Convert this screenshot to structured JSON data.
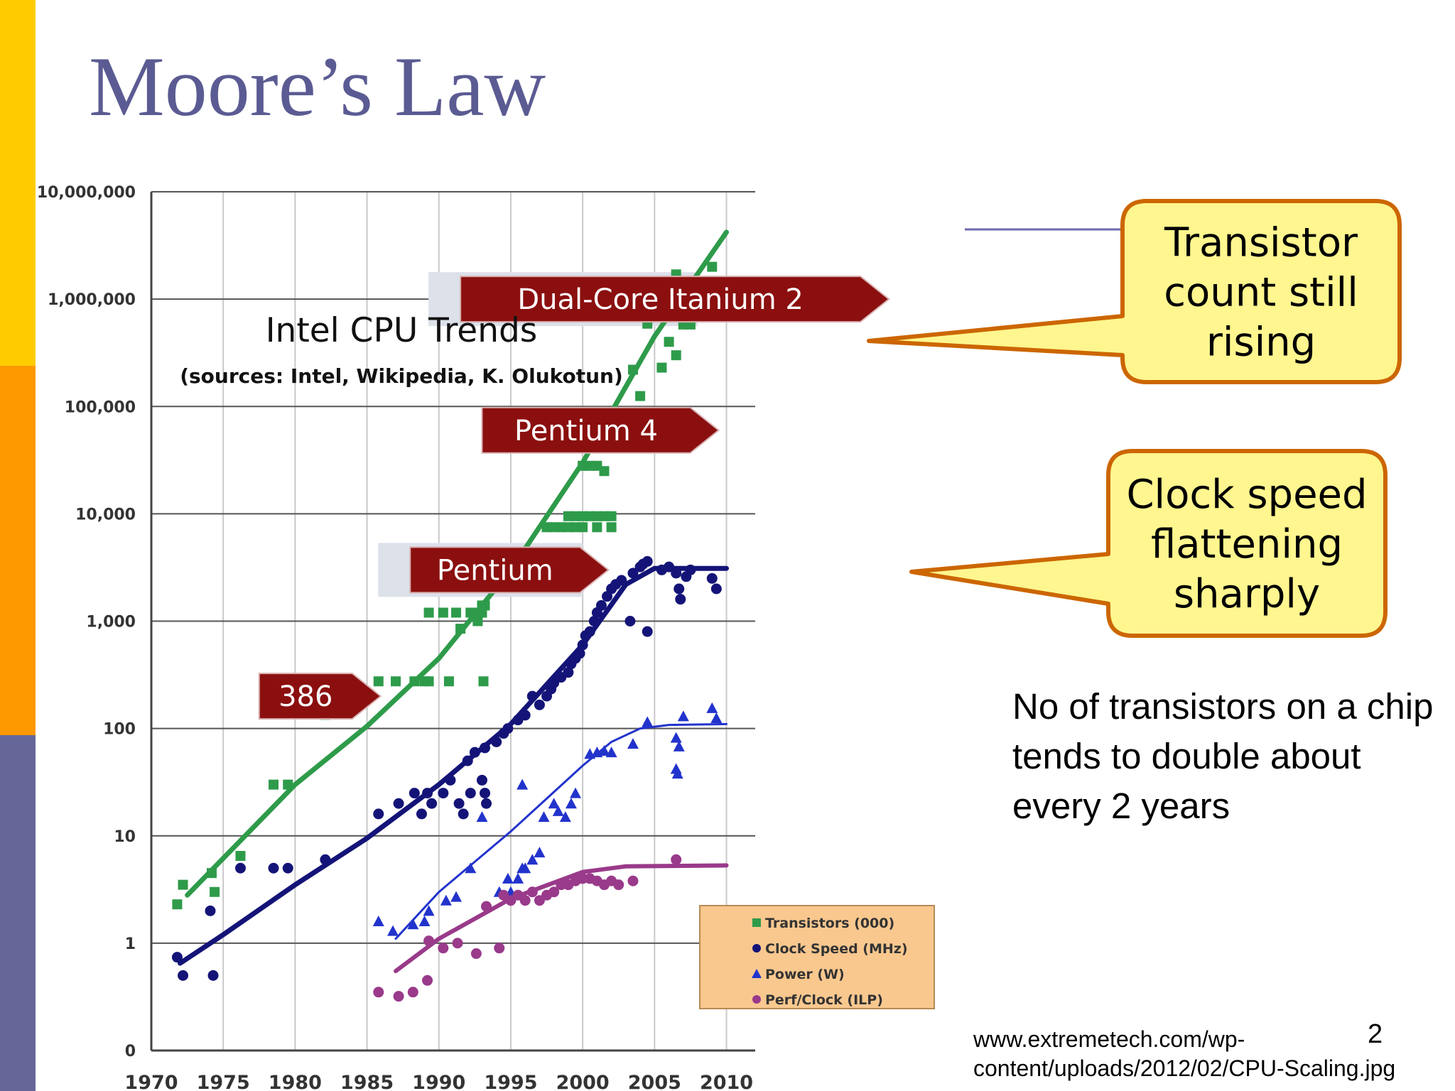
{
  "slide": {
    "title": "Moore’s Law",
    "description": "No of transistors on a chip tends to double about every 2 years",
    "source_line1": "www.extremetech.com/wp-",
    "source_line2": "content/uploads/2012/02/CPU-Scaling.jpg",
    "page_number": "2",
    "callouts": [
      {
        "lines": [
          "Transistor",
          "count still",
          "rising"
        ],
        "points_to": "Transistors (000)"
      },
      {
        "lines": [
          "Clock speed",
          "flattening",
          "sharply"
        ],
        "points_to": "Clock Speed (MHz)"
      }
    ],
    "colors": {
      "strip_top": "#FFCC00",
      "strip_middle": "#FF9900",
      "strip_bottom": "#666699",
      "title": "#5B5B93",
      "callout_fill": "#FFF68F",
      "callout_border": "#CC6600"
    }
  },
  "chart_data": {
    "type": "scatter",
    "title": "Intel CPU Trends",
    "subtitle": "(sources: Intel, Wikipedia, K. Olukotun)",
    "xlim": [
      1970,
      2012
    ],
    "x_ticks": [
      "1970",
      "1975",
      "1980",
      "1985",
      "1990",
      "1995",
      "2000",
      "2005",
      "2010"
    ],
    "y_scale": "log",
    "y_ticks": [
      "0",
      "1",
      "10",
      "100",
      "1,000",
      "10,000",
      "100,000",
      "1,000,000",
      "10,000,000"
    ],
    "grid": true,
    "legend_position": "bottom-right",
    "colors": {
      "transistors": "#2E9B4A",
      "clock": "#141478",
      "power": "#2233CC",
      "ilp": "#993A8A",
      "label_bg": "#8B0F0F"
    },
    "labels": [
      {
        "text": "386",
        "x": 1977.5,
        "y": 200
      },
      {
        "text": "Pentium",
        "x": 1988,
        "y": 3000,
        "highlight_to": 2000
      },
      {
        "text": "Pentium 4",
        "x": 1993,
        "y": 60000
      },
      {
        "text": "Dual-Core Itanium 2",
        "x": 1991.5,
        "y": 1000000,
        "highlight_to": 2008
      }
    ],
    "series": [
      {
        "name": "Transistors (000)",
        "marker": "square",
        "points": [
          [
            1971.8,
            2.3
          ],
          [
            1972.2,
            3.5
          ],
          [
            1974.2,
            4.5
          ],
          [
            1974.4,
            3
          ],
          [
            1976.2,
            6.5
          ],
          [
            1978.5,
            30
          ],
          [
            1979.5,
            30
          ],
          [
            1982.1,
            134
          ],
          [
            1985.8,
            275
          ],
          [
            1987,
            275
          ],
          [
            1988.3,
            275
          ],
          [
            1989,
            275
          ],
          [
            1989.3,
            275
          ],
          [
            1990.7,
            275
          ],
          [
            1989.3,
            1200
          ],
          [
            1990.3,
            1200
          ],
          [
            1991.2,
            1200
          ],
          [
            1991.5,
            850
          ],
          [
            1992.2,
            1200
          ],
          [
            1992.7,
            1200
          ],
          [
            1993,
            1200
          ],
          [
            1992.7,
            1000
          ],
          [
            1993,
            1400
          ],
          [
            1993.2,
            1400
          ],
          [
            1993.1,
            275
          ],
          [
            1993.2,
            3000
          ],
          [
            1994,
            3000
          ],
          [
            1994.5,
            3000
          ],
          [
            1995,
            3000
          ],
          [
            1995.5,
            3000
          ],
          [
            1996,
            3000
          ],
          [
            1996.5,
            3000
          ],
          [
            1997,
            3000
          ],
          [
            1997.5,
            3000
          ],
          [
            1998,
            3000
          ],
          [
            1999,
            3000
          ],
          [
            1997.5,
            7500
          ],
          [
            1998,
            7500
          ],
          [
            1998.5,
            7500
          ],
          [
            1999,
            7500
          ],
          [
            1999.5,
            7500
          ],
          [
            2000,
            7500
          ],
          [
            2001,
            7500
          ],
          [
            2002,
            7500
          ],
          [
            1999,
            9500
          ],
          [
            1999.5,
            9500
          ],
          [
            2000,
            9500
          ],
          [
            2000.5,
            9500
          ],
          [
            2001,
            9500
          ],
          [
            2001.5,
            9500
          ],
          [
            2002,
            9500
          ],
          [
            2000,
            28000
          ],
          [
            2000.5,
            28000
          ],
          [
            2001,
            28000
          ],
          [
            2001.5,
            42000
          ],
          [
            2002,
            42000
          ],
          [
            2002.5,
            42000
          ],
          [
            2001.5,
            25000
          ],
          [
            2003.5,
            220000
          ],
          [
            2004,
            125000
          ],
          [
            2004.5,
            590000
          ],
          [
            2005.5,
            230000
          ],
          [
            2006,
            400000
          ],
          [
            2006.5,
            300000
          ],
          [
            2007,
            580000
          ],
          [
            2007.5,
            580000
          ],
          [
            2006.5,
            1700000
          ],
          [
            2009,
            2000000
          ],
          [
            2009.3,
            700000
          ]
        ],
        "trend": [
          [
            1972.5,
            2.8
          ],
          [
            1980,
            30
          ],
          [
            1985,
            105
          ],
          [
            1990,
            450
          ],
          [
            1995,
            3000
          ],
          [
            2000,
            30000
          ],
          [
            2005,
            450000
          ],
          [
            2010,
            4200000
          ]
        ]
      },
      {
        "name": "Clock Speed (MHz)",
        "marker": "circle",
        "points": [
          [
            1971.8,
            0.74
          ],
          [
            1972.2,
            0.5
          ],
          [
            1974.1,
            2
          ],
          [
            1974.3,
            0.5
          ],
          [
            1976.2,
            5
          ],
          [
            1978.5,
            5
          ],
          [
            1979.5,
            5
          ],
          [
            1982.1,
            6
          ],
          [
            1985.8,
            16
          ],
          [
            1987.2,
            20
          ],
          [
            1988.3,
            25
          ],
          [
            1988.8,
            16
          ],
          [
            1989.2,
            25
          ],
          [
            1989.5,
            20
          ],
          [
            1990.3,
            25
          ],
          [
            1990.8,
            33
          ],
          [
            1991.4,
            20
          ],
          [
            1991.7,
            16
          ],
          [
            1992.2,
            25
          ],
          [
            1993,
            33
          ],
          [
            1993.2,
            25
          ],
          [
            1993.3,
            20
          ],
          [
            1992,
            50
          ],
          [
            1992.5,
            60
          ],
          [
            1993.2,
            66
          ],
          [
            1994,
            75
          ],
          [
            1994.5,
            90
          ],
          [
            1994.8,
            100
          ],
          [
            1995.5,
            120
          ],
          [
            1996,
            133
          ],
          [
            1996.5,
            200
          ],
          [
            1997,
            166
          ],
          [
            1997.5,
            200
          ],
          [
            1997.8,
            233
          ],
          [
            1998,
            266
          ],
          [
            1998.5,
            300
          ],
          [
            1999,
            333
          ],
          [
            1999.2,
            400
          ],
          [
            1999.5,
            450
          ],
          [
            1999.8,
            500
          ],
          [
            2000,
            600
          ],
          [
            2000.2,
            733
          ],
          [
            2000.5,
            800
          ],
          [
            2000.8,
            1000
          ],
          [
            2001,
            1200
          ],
          [
            2001.3,
            1400
          ],
          [
            2001.7,
            1700
          ],
          [
            2002,
            2000
          ],
          [
            2002.3,
            2200
          ],
          [
            2002.7,
            2400
          ],
          [
            2003.3,
            1000
          ],
          [
            2003.5,
            2800
          ],
          [
            2004,
            3200
          ],
          [
            2004.2,
            3400
          ],
          [
            2004.5,
            3600
          ],
          [
            2004.5,
            800
          ],
          [
            2005.5,
            3000
          ],
          [
            2006,
            3200
          ],
          [
            2006.5,
            2800
          ],
          [
            2006.7,
            2000
          ],
          [
            2006.8,
            1600
          ],
          [
            2007.2,
            2600
          ],
          [
            2007.5,
            3000
          ],
          [
            2009,
            2500
          ],
          [
            2009.3,
            2000
          ]
        ],
        "trend": [
          [
            1972,
            0.65
          ],
          [
            1975,
            1.2
          ],
          [
            1980,
            3.5
          ],
          [
            1985,
            9.5
          ],
          [
            1990,
            30
          ],
          [
            1995,
            110
          ],
          [
            2000,
            600
          ],
          [
            2003,
            2200
          ],
          [
            2005,
            3100
          ],
          [
            2010,
            3100
          ]
        ]
      },
      {
        "name": "Power (W)",
        "marker": "triangle",
        "points": [
          [
            1985.8,
            1.6
          ],
          [
            1986.8,
            1.3
          ],
          [
            1988.2,
            1.5
          ],
          [
            1989,
            1.6
          ],
          [
            1989.3,
            2
          ],
          [
            1990.5,
            2.5
          ],
          [
            1991.2,
            2.7
          ],
          [
            1992.2,
            5
          ],
          [
            1993,
            15
          ],
          [
            1994.2,
            3
          ],
          [
            1994.8,
            4
          ],
          [
            1995,
            3
          ],
          [
            1995.5,
            4
          ],
          [
            1995.8,
            5
          ],
          [
            1996,
            5
          ],
          [
            1996.5,
            6
          ],
          [
            1997,
            7
          ],
          [
            1997.3,
            15
          ],
          [
            1998,
            20
          ],
          [
            1998.3,
            17
          ],
          [
            1998.8,
            15
          ],
          [
            1999.2,
            20
          ],
          [
            1999.5,
            25
          ],
          [
            2000.5,
            58
          ],
          [
            2001,
            60
          ],
          [
            2001.5,
            62
          ],
          [
            2002,
            60
          ],
          [
            2003.5,
            72
          ],
          [
            1995.8,
            30
          ],
          [
            2004.5,
            115
          ],
          [
            2006.5,
            82
          ],
          [
            2006.7,
            68
          ],
          [
            2006.5,
            42
          ],
          [
            2006.6,
            38
          ],
          [
            2007,
            130
          ],
          [
            2009,
            155
          ],
          [
            2009.3,
            125
          ]
        ],
        "trend": [
          [
            1987,
            1.1
          ],
          [
            1990,
            3
          ],
          [
            1995,
            11
          ],
          [
            2000,
            45
          ],
          [
            2002,
            75
          ],
          [
            2004,
            100
          ],
          [
            2006,
            108
          ],
          [
            2010,
            110
          ]
        ]
      },
      {
        "name": "Perf/Clock (ILP)",
        "marker": "circle",
        "points": [
          [
            1985.8,
            0.35
          ],
          [
            1987.2,
            0.32
          ],
          [
            1988.2,
            0.35
          ],
          [
            1989.2,
            0.45
          ],
          [
            1989.3,
            1.05
          ],
          [
            1990.3,
            0.9
          ],
          [
            1991.3,
            1
          ],
          [
            1992.6,
            0.8
          ],
          [
            1993.3,
            2.2
          ],
          [
            1994.2,
            0.9
          ],
          [
            1994.5,
            2.8
          ],
          [
            1995,
            2.5
          ],
          [
            1995.5,
            2.8
          ],
          [
            1996,
            2.5
          ],
          [
            1996.5,
            3
          ],
          [
            1997,
            2.5
          ],
          [
            1997.5,
            2.8
          ],
          [
            1998,
            3
          ],
          [
            1998.5,
            3.5
          ],
          [
            1999,
            3.5
          ],
          [
            1999.5,
            3.8
          ],
          [
            2000,
            4
          ],
          [
            2000.5,
            4
          ],
          [
            2001,
            3.8
          ],
          [
            2001.5,
            3.5
          ],
          [
            2002,
            3.8
          ],
          [
            2002.5,
            3.5
          ],
          [
            2003.5,
            3.8
          ],
          [
            2006.5,
            6
          ]
        ],
        "trend": [
          [
            1987,
            0.55
          ],
          [
            1990,
            1.1
          ],
          [
            1995,
            2.6
          ],
          [
            2000,
            4.6
          ],
          [
            2003,
            5.2
          ],
          [
            2010,
            5.3
          ]
        ]
      }
    ]
  }
}
